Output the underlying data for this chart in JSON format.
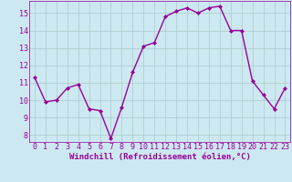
{
  "x": [
    0,
    1,
    2,
    3,
    4,
    5,
    6,
    7,
    8,
    9,
    10,
    11,
    12,
    13,
    14,
    15,
    16,
    17,
    18,
    19,
    20,
    21,
    22,
    23
  ],
  "y": [
    11.3,
    9.9,
    10.0,
    10.7,
    10.9,
    9.5,
    9.4,
    7.8,
    9.6,
    11.6,
    13.1,
    13.3,
    14.8,
    15.1,
    15.3,
    15.0,
    15.3,
    15.4,
    14.0,
    14.0,
    11.1,
    10.3,
    9.5,
    10.7
  ],
  "ylim": [
    7.6,
    15.7
  ],
  "xlim": [
    -0.5,
    23.5
  ],
  "yticks": [
    8,
    9,
    10,
    11,
    12,
    13,
    14,
    15
  ],
  "xticks": [
    0,
    1,
    2,
    3,
    4,
    5,
    6,
    7,
    8,
    9,
    10,
    11,
    12,
    13,
    14,
    15,
    16,
    17,
    18,
    19,
    20,
    21,
    22,
    23
  ],
  "xlabel": "Windchill (Refroidissement éolien,°C)",
  "line_color": "#990099",
  "marker": "D",
  "marker_size": 2.0,
  "bg_color": "#cce8f0",
  "grid_color": "#aacccc",
  "tick_color": "#990099",
  "label_color": "#990099",
  "xlabel_fontsize": 6.5,
  "tick_fontsize": 6.0,
  "line_width": 1.0
}
